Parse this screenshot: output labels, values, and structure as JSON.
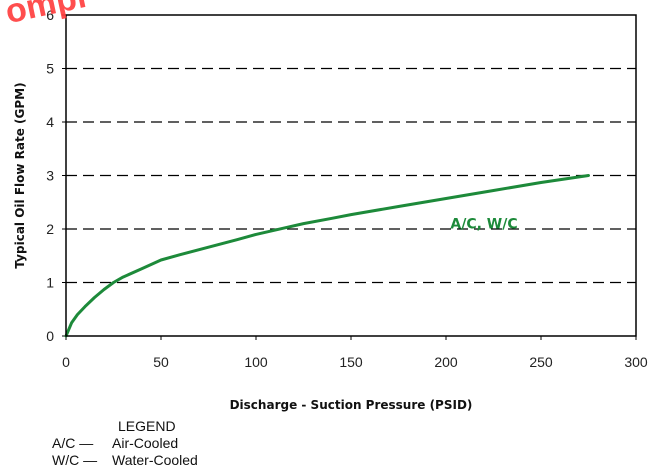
{
  "watermark": {
    "text": "ompl",
    "color": "#ff3b3b"
  },
  "chart_data": {
    "type": "line",
    "xlabel": "Discharge - Suction Pressure (PSID)",
    "ylabel": "Typical Oil Flow Rate (GPM)",
    "xlim": [
      0,
      300
    ],
    "ylim": [
      0,
      6
    ],
    "xticks": [
      "0",
      "50",
      "100",
      "150",
      "200",
      "250",
      "300"
    ],
    "yticks": [
      "0",
      "1",
      "2",
      "3",
      "4",
      "5",
      "6"
    ],
    "grid": "horizontal dashed",
    "series": [
      {
        "name": "A/C, W/C",
        "color": "#1d8a3a",
        "x": [
          0,
          3,
          6,
          10,
          15,
          20,
          25,
          30,
          40,
          50,
          60,
          75,
          90,
          100,
          115,
          125,
          140,
          150,
          175,
          200,
          225,
          250,
          275
        ],
        "y": [
          0.0,
          0.25,
          0.4,
          0.55,
          0.72,
          0.87,
          1.0,
          1.1,
          1.26,
          1.42,
          1.52,
          1.66,
          1.8,
          1.9,
          2.02,
          2.1,
          2.2,
          2.27,
          2.42,
          2.57,
          2.72,
          2.87,
          3.0
        ]
      }
    ]
  },
  "legend": {
    "title": "LEGEND",
    "items": [
      {
        "abbr": "A/C —",
        "label": "Air-Cooled"
      },
      {
        "abbr": "W/C —",
        "label": "Water-Cooled"
      }
    ]
  }
}
